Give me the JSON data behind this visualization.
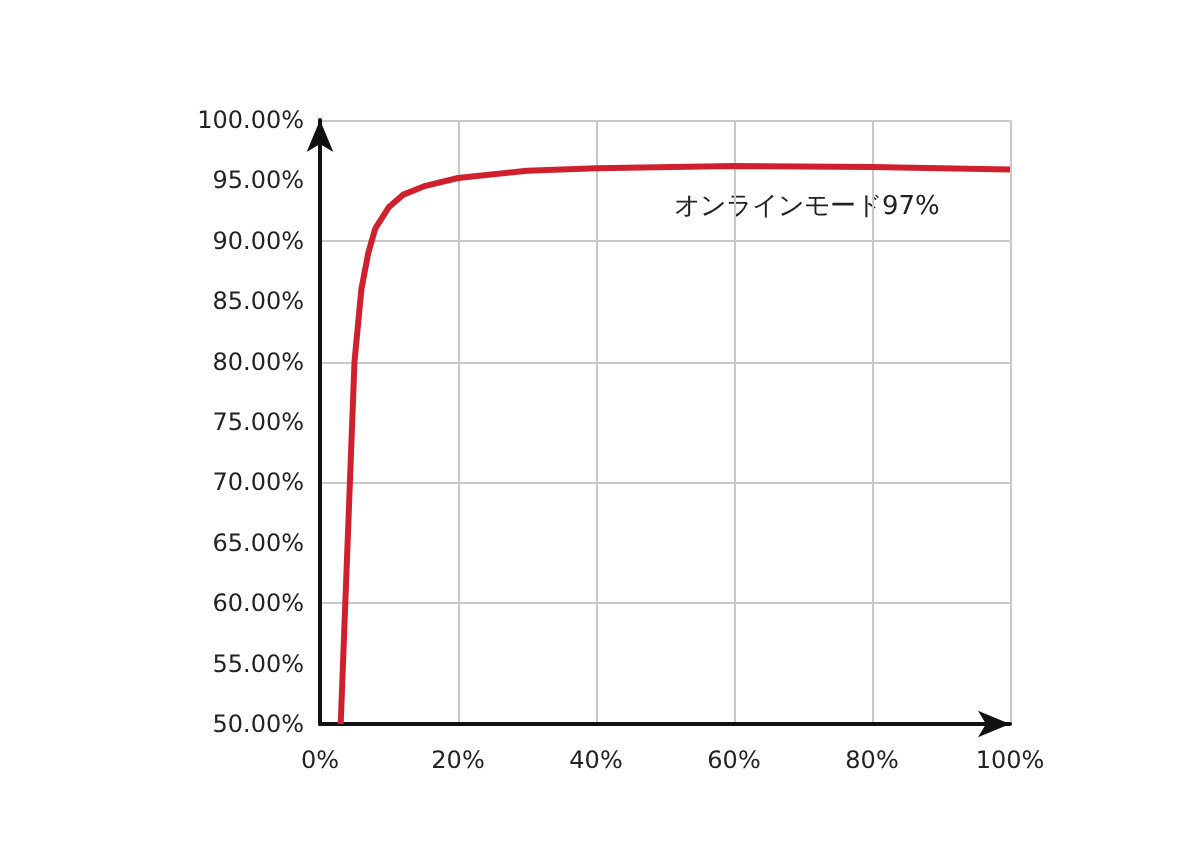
{
  "chart_data": {
    "type": "line",
    "x": [
      3,
      4,
      5,
      6,
      7,
      8,
      10,
      12,
      15,
      20,
      30,
      40,
      60,
      80,
      100
    ],
    "series": [
      {
        "color": "#d0202e",
        "values": [
          50,
          65,
          80,
          86,
          89,
          91,
          92.8,
          93.8,
          94.5,
          95.2,
          95.8,
          96,
          96.2,
          96.1,
          95.9
        ]
      }
    ],
    "xlim": [
      0,
      100
    ],
    "ylim": [
      50,
      100
    ],
    "xticks": [
      {
        "value": 0,
        "label": "0%"
      },
      {
        "value": 20,
        "label": "20%"
      },
      {
        "value": 40,
        "label": "40%"
      },
      {
        "value": 60,
        "label": "60%"
      },
      {
        "value": 80,
        "label": "80%"
      },
      {
        "value": 100,
        "label": "100%"
      }
    ],
    "yticks": [
      {
        "value": 50,
        "label": "50.00%"
      },
      {
        "value": 55,
        "label": "55.00%"
      },
      {
        "value": 60,
        "label": "60.00%"
      },
      {
        "value": 65,
        "label": "65.00%"
      },
      {
        "value": 70,
        "label": "70.00%"
      },
      {
        "value": 75,
        "label": "75.00%"
      },
      {
        "value": 80,
        "label": "80.00%"
      },
      {
        "value": 85,
        "label": "85.00%"
      },
      {
        "value": 90,
        "label": "90.00%"
      },
      {
        "value": 95,
        "label": "95.00%"
      },
      {
        "value": 100,
        "label": "100.00%"
      }
    ],
    "annotations": [
      "オンラインモード97%"
    ],
    "grid": true,
    "marker": "none",
    "line_style": "solid"
  }
}
